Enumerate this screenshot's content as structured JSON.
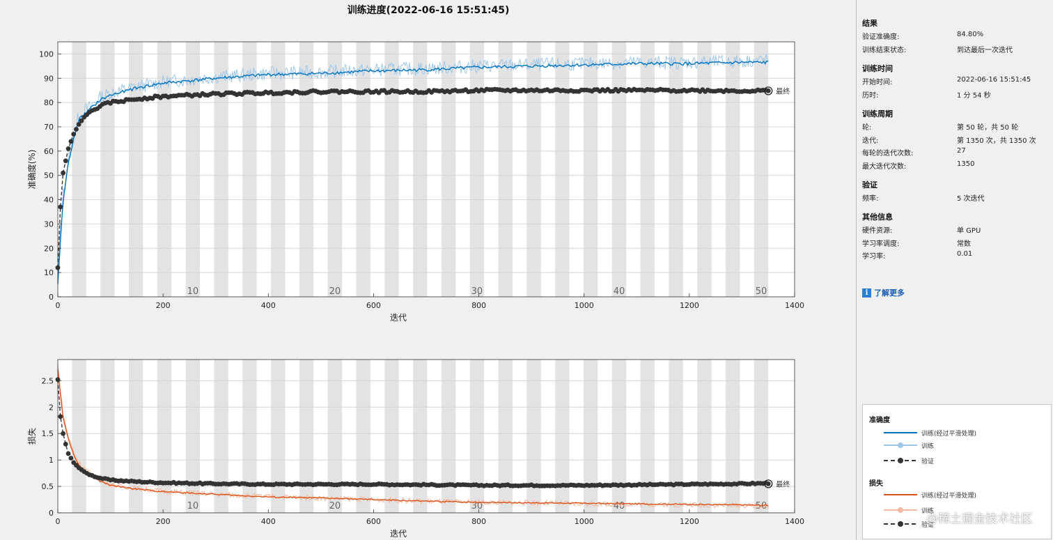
{
  "title": "训练进度(2022-06-16 15:51:45)",
  "chart_data": [
    {
      "type": "line",
      "ylabel": "准确度(%)",
      "xlabel": "迭代",
      "xlim": [
        0,
        1400
      ],
      "ylim": [
        0,
        105
      ],
      "xticks": [
        0,
        200,
        400,
        600,
        800,
        1000,
        1200,
        1400
      ],
      "yticks": [
        0,
        10,
        20,
        30,
        40,
        50,
        60,
        70,
        80,
        90,
        100
      ],
      "epoch_labels": [
        "10",
        "20",
        "30",
        "40",
        "50"
      ],
      "final_label": "最终",
      "grid": true,
      "series": [
        {
          "name": "训练(经过平滑处理)",
          "color": "#0072bd",
          "x": [
            0,
            10,
            20,
            30,
            40,
            60,
            80,
            100,
            150,
            200,
            300,
            400,
            500,
            600,
            700,
            800,
            900,
            1000,
            1100,
            1200,
            1300,
            1350
          ],
          "y": [
            5,
            40,
            55,
            65,
            73,
            77,
            81,
            83,
            86,
            88,
            90,
            91.5,
            92,
            93,
            93.5,
            94.5,
            95,
            95.5,
            96,
            96,
            96.5,
            96.5
          ]
        },
        {
          "name": "训练",
          "color": "#9fc6e8",
          "x": [
            0,
            10,
            20,
            30,
            40,
            60,
            80,
            100,
            150,
            200,
            300,
            400,
            500,
            600,
            700,
            800,
            900,
            1000,
            1100,
            1200,
            1300,
            1350
          ],
          "y": [
            10,
            42,
            56,
            66,
            74,
            78,
            82,
            84,
            86.5,
            88.5,
            90.5,
            92,
            92.5,
            93.5,
            94,
            95,
            95.5,
            96,
            96.5,
            96.5,
            97,
            97.5
          ]
        },
        {
          "name": "验证",
          "color": "#333333",
          "x": [
            0,
            5,
            10,
            15,
            20,
            30,
            40,
            50,
            60,
            80,
            100,
            150,
            200,
            300,
            400,
            500,
            600,
            700,
            800,
            900,
            1000,
            1100,
            1200,
            1300,
            1350
          ],
          "y": [
            12,
            37,
            51,
            56,
            61,
            67,
            71,
            74,
            76,
            78.5,
            80,
            81.5,
            82.5,
            83.5,
            84,
            84.5,
            84.5,
            84.5,
            85,
            85,
            85,
            85,
            85,
            84.8,
            84.8
          ]
        }
      ]
    },
    {
      "type": "line",
      "ylabel": "损失",
      "xlabel": "迭代",
      "xlim": [
        0,
        1400
      ],
      "ylim": [
        0,
        2.9
      ],
      "xticks": [
        0,
        200,
        400,
        600,
        800,
        1000,
        1200,
        1400
      ],
      "yticks": [
        0,
        0.5,
        1,
        1.5,
        2,
        2.5
      ],
      "epoch_labels": [
        "10",
        "20",
        "30",
        "40",
        "50"
      ],
      "final_label": "最终",
      "grid": true,
      "series": [
        {
          "name": "训练(经过平滑处理)",
          "color": "#d95319",
          "x": [
            0,
            10,
            20,
            30,
            40,
            60,
            80,
            100,
            150,
            200,
            300,
            400,
            500,
            600,
            700,
            800,
            900,
            1000,
            1100,
            1200,
            1300,
            1350
          ],
          "y": [
            2.7,
            1.8,
            1.4,
            1.1,
            0.9,
            0.72,
            0.6,
            0.52,
            0.45,
            0.4,
            0.35,
            0.3,
            0.28,
            0.25,
            0.22,
            0.2,
            0.19,
            0.18,
            0.17,
            0.16,
            0.15,
            0.14
          ]
        },
        {
          "name": "训练",
          "color": "#f2b8a0",
          "x": [
            0,
            10,
            20,
            30,
            40,
            60,
            80,
            100,
            150,
            200,
            300,
            400,
            500,
            600,
            700,
            800,
            900,
            1000,
            1100,
            1200,
            1300,
            1350
          ],
          "y": [
            2.8,
            1.85,
            1.45,
            1.15,
            0.95,
            0.75,
            0.62,
            0.54,
            0.46,
            0.41,
            0.35,
            0.31,
            0.28,
            0.25,
            0.22,
            0.2,
            0.19,
            0.17,
            0.16,
            0.15,
            0.14,
            0.12
          ]
        },
        {
          "name": "验证",
          "color": "#333333",
          "x": [
            0,
            5,
            10,
            15,
            20,
            30,
            40,
            50,
            60,
            80,
            100,
            150,
            200,
            300,
            400,
            500,
            600,
            700,
            800,
            900,
            1000,
            1100,
            1200,
            1300,
            1350
          ],
          "y": [
            2.52,
            1.82,
            1.5,
            1.3,
            1.12,
            0.95,
            0.85,
            0.78,
            0.72,
            0.66,
            0.62,
            0.59,
            0.57,
            0.55,
            0.54,
            0.54,
            0.54,
            0.53,
            0.52,
            0.52,
            0.52,
            0.53,
            0.54,
            0.55,
            0.56
          ]
        }
      ]
    }
  ],
  "panel": {
    "results": {
      "title": "结果",
      "val_acc_label": "验证准确度:",
      "val_acc": "84.80%",
      "status_label": "训练结束状态:",
      "status": "到达最后一次迭代"
    },
    "time": {
      "title": "训练时间",
      "start_label": "开始时间:",
      "start": "2022-06-16 15:51:45",
      "elapsed_label": "历时:",
      "elapsed": "1 分 54 秒"
    },
    "cycle": {
      "title": "训练周期",
      "epoch_label": "轮:",
      "epoch": "第 50 轮，共 50 轮",
      "iter_label": "迭代:",
      "iter": "第 1350 次，共 1350 次",
      "iter_per_epoch_label": "每轮的迭代次数:",
      "iter_per_epoch": "27",
      "max_iter_label": "最大迭代次数:",
      "max_iter": "1350"
    },
    "validation": {
      "title": "验证",
      "freq_label": "频率:",
      "freq": "5 次迭代"
    },
    "other": {
      "title": "其他信息",
      "hw_label": "硬件资源:",
      "hw": "单 GPU",
      "lr_sched_label": "学习率调度:",
      "lr_sched": "常数",
      "lr_label": "学习率:",
      "lr": "0.01"
    },
    "learn_more": "了解更多"
  },
  "legend": {
    "acc_title": "准确度",
    "acc_smooth": "训练(经过平滑处理)",
    "acc_train": "训练",
    "acc_val": "验证",
    "loss_title": "损失",
    "loss_smooth": "训练(经过平滑处理)",
    "loss_train": "训练",
    "loss_val": "验证",
    "colors": {
      "acc_smooth": "#0072bd",
      "acc_train": "#9fc6e8",
      "val": "#333333",
      "loss_smooth": "#d95319",
      "loss_train": "#f2b8a0"
    }
  },
  "watermark": "@稀土掘金技术社区"
}
